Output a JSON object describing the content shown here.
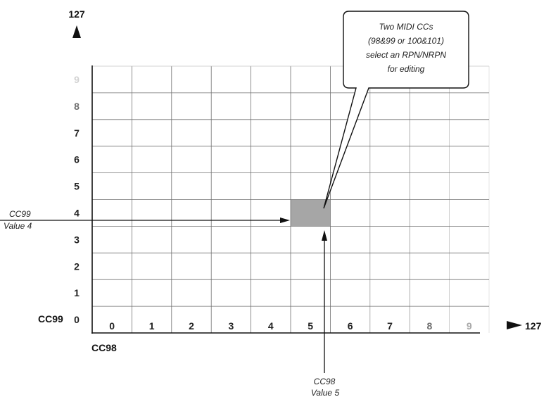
{
  "diagram": {
    "y_axis_max": "127",
    "x_axis_max": "127",
    "y_axis_label": "CC99",
    "x_axis_label": "CC98",
    "y_ticks": [
      "0",
      "1",
      "2",
      "3",
      "4",
      "5",
      "6",
      "7",
      "8",
      "9"
    ],
    "x_ticks": [
      "0",
      "1",
      "2",
      "3",
      "4",
      "5",
      "6",
      "7",
      "8",
      "9"
    ],
    "selected_cell": {
      "x_value": 5,
      "y_value": 4,
      "color": "#a6a6a6"
    },
    "callout_lines": [
      "Two MIDI CCs",
      "(98&99 or 100&101)",
      "select an RPN/NRPN",
      "for editing"
    ],
    "cc99_annotation": [
      "CC99",
      "Value 4"
    ],
    "cc98_annotation": [
      "CC98",
      "Value 5"
    ]
  }
}
